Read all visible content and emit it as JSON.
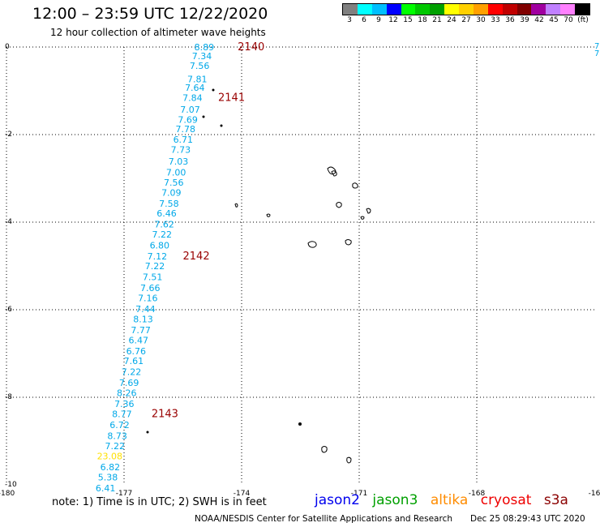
{
  "title": "12:00 – 23:59 UTC 12/22/2020",
  "subtitle": "12 hour collection of altimeter wave heights",
  "legend": {
    "colors": [
      "#808080",
      "#00ffff",
      "#00bfff",
      "#0000ff",
      "#00ff00",
      "#00c800",
      "#00a000",
      "#ffff00",
      "#ffd000",
      "#ffa000",
      "#ff0000",
      "#c00000",
      "#800000",
      "#a000a0",
      "#c080ff",
      "#ff80ff",
      "#000000"
    ],
    "labels": [
      "3",
      "6",
      "9",
      "12",
      "15",
      "18",
      "21",
      "24",
      "27",
      "30",
      "33",
      "36",
      "39",
      "42",
      "45",
      "70",
      "(ft)"
    ]
  },
  "chart_data": {
    "type": "scatter",
    "xlim": [
      -180,
      -165
    ],
    "ylim": [
      -10,
      0
    ],
    "x_ticks": [
      "-180",
      "-177",
      "-174",
      "-171",
      "-168",
      "-16"
    ],
    "y_ticks": [
      "0",
      "-2",
      "-4",
      "-6",
      "-8",
      "-10"
    ],
    "track_color": "#00a8e8",
    "pass_color": "#990000",
    "outlier_color": "#ffe000",
    "right_edge_labels": [
      "7",
      "7"
    ],
    "swh_readings": [
      {
        "lon": -174.7,
        "lat": 0.0,
        "value": "8.89"
      },
      {
        "lon": -174.76,
        "lat": -0.2,
        "value": "7.34"
      },
      {
        "lon": -174.82,
        "lat": -0.43,
        "value": "7.56"
      },
      {
        "lon": -174.88,
        "lat": -0.73,
        "value": "7.81"
      },
      {
        "lon": -174.94,
        "lat": -0.93,
        "value": "7.64"
      },
      {
        "lon": -175.0,
        "lat": -1.16,
        "value": "7.84"
      },
      {
        "lon": -175.06,
        "lat": -1.43,
        "value": "7.07"
      },
      {
        "lon": -175.12,
        "lat": -1.66,
        "value": "7.69"
      },
      {
        "lon": -175.18,
        "lat": -1.87,
        "value": "7.78"
      },
      {
        "lon": -175.24,
        "lat": -2.11,
        "value": "6.71"
      },
      {
        "lon": -175.3,
        "lat": -2.34,
        "value": "7.73"
      },
      {
        "lon": -175.36,
        "lat": -2.61,
        "value": "7.03"
      },
      {
        "lon": -175.42,
        "lat": -2.86,
        "value": "7.00"
      },
      {
        "lon": -175.48,
        "lat": -3.09,
        "value": "7.56"
      },
      {
        "lon": -175.54,
        "lat": -3.32,
        "value": "7.09"
      },
      {
        "lon": -175.6,
        "lat": -3.57,
        "value": "7.58"
      },
      {
        "lon": -175.66,
        "lat": -3.8,
        "value": "6.46"
      },
      {
        "lon": -175.72,
        "lat": -4.05,
        "value": "7.62"
      },
      {
        "lon": -175.78,
        "lat": -4.28,
        "value": "7.22"
      },
      {
        "lon": -175.84,
        "lat": -4.53,
        "value": "6.80"
      },
      {
        "lon": -175.9,
        "lat": -4.78,
        "value": "7.12"
      },
      {
        "lon": -175.96,
        "lat": -5.0,
        "value": "7.22"
      },
      {
        "lon": -176.02,
        "lat": -5.25,
        "value": "7.51"
      },
      {
        "lon": -176.08,
        "lat": -5.5,
        "value": "7.66"
      },
      {
        "lon": -176.14,
        "lat": -5.73,
        "value": "7.16"
      },
      {
        "lon": -176.2,
        "lat": -5.98,
        "value": "7.44"
      },
      {
        "lon": -176.26,
        "lat": -6.21,
        "value": "8.13"
      },
      {
        "lon": -176.32,
        "lat": -6.46,
        "value": "7.77"
      },
      {
        "lon": -176.38,
        "lat": -6.69,
        "value": "6.47"
      },
      {
        "lon": -176.44,
        "lat": -6.94,
        "value": "6.76"
      },
      {
        "lon": -176.5,
        "lat": -7.17,
        "value": "7.61"
      },
      {
        "lon": -176.56,
        "lat": -7.42,
        "value": "7.22"
      },
      {
        "lon": -176.62,
        "lat": -7.67,
        "value": "7.69"
      },
      {
        "lon": -176.68,
        "lat": -7.9,
        "value": "8.26"
      },
      {
        "lon": -176.74,
        "lat": -8.15,
        "value": "7.36"
      },
      {
        "lon": -176.8,
        "lat": -8.38,
        "value": "8.77"
      },
      {
        "lon": -176.86,
        "lat": -8.63,
        "value": "6.72"
      },
      {
        "lon": -176.92,
        "lat": -8.88,
        "value": "8.73"
      },
      {
        "lon": -176.98,
        "lat": -9.11,
        "value": "7.22"
      },
      {
        "lon": -177.04,
        "lat": -9.34,
        "value": "23.08",
        "outlier": true
      },
      {
        "lon": -177.1,
        "lat": -9.59,
        "value": "6.82"
      },
      {
        "lon": -177.16,
        "lat": -9.82,
        "value": "5.38"
      },
      {
        "lon": -177.22,
        "lat": -10.07,
        "value": "6.41"
      }
    ],
    "pass_labels": [
      {
        "lon": -174.1,
        "lat": 0.0,
        "text": "2140"
      },
      {
        "lon": -174.6,
        "lat": -1.16,
        "text": "2141"
      },
      {
        "lon": -175.5,
        "lat": -4.78,
        "text": "2142"
      },
      {
        "lon": -176.3,
        "lat": -8.38,
        "text": "2143"
      }
    ]
  },
  "note": "note: 1) Time is in UTC; 2) SWH is in feet",
  "satellites": [
    {
      "name": "jason2",
      "color": "#0000ee"
    },
    {
      "name": "jason3",
      "color": "#00a000"
    },
    {
      "name": "altika",
      "color": "#ff8c00"
    },
    {
      "name": "cryosat",
      "color": "#ee0000"
    },
    {
      "name": "s3a",
      "color": "#8b0000"
    }
  ],
  "credit": "NOAA/NESDIS Center for Satellite Applications and Research",
  "timestamp": "Dec 25 08:29:43 UTC 2020"
}
